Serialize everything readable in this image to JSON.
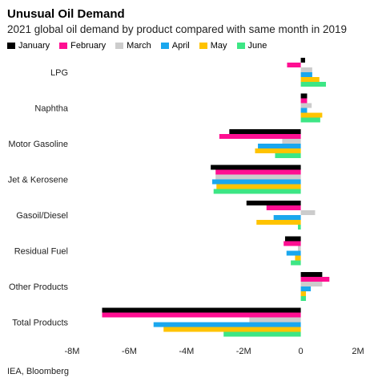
{
  "title": "Unusual Oil Demand",
  "subtitle": "2021 global oil demand by product compared with same month in 2019",
  "source": "IEA, Bloomberg",
  "chart_data": {
    "type": "bar",
    "orientation": "horizontal",
    "categories": [
      "LPG",
      "Naphtha",
      "Motor Gasoline",
      "Jet & Kerosene",
      "Gasoil/Diesel",
      "Residual Fuel",
      "Other Products",
      "Total Products"
    ],
    "series": [
      {
        "name": "January",
        "color": "#000000",
        "values": [
          0.15,
          0.22,
          -2.5,
          -3.15,
          -1.9,
          -0.55,
          0.75,
          -6.95
        ]
      },
      {
        "name": "February",
        "color": "#ff0f92",
        "values": [
          -0.48,
          0.22,
          -2.85,
          -2.98,
          -1.2,
          -0.6,
          1.0,
          -6.95
        ]
      },
      {
        "name": "March",
        "color": "#cccccc",
        "values": [
          0.4,
          0.38,
          -0.65,
          -2.98,
          0.5,
          -0.1,
          0.75,
          -1.8
        ]
      },
      {
        "name": "April",
        "color": "#1aa7ee",
        "values": [
          0.4,
          0.22,
          -1.5,
          -3.1,
          -0.95,
          -0.5,
          0.35,
          -5.15
        ]
      },
      {
        "name": "May",
        "color": "#ffc300",
        "values": [
          0.65,
          0.75,
          -1.6,
          -2.95,
          -1.55,
          -0.2,
          0.18,
          -4.8
        ]
      },
      {
        "name": "June",
        "color": "#3de685",
        "values": [
          0.88,
          0.68,
          -0.9,
          -3.05,
          -0.1,
          -0.35,
          0.18,
          -2.7
        ]
      }
    ],
    "xlim": [
      -8,
      2
    ],
    "xticks": [
      -8,
      -6,
      -4,
      -2,
      0,
      2
    ],
    "xtick_labels": [
      "-8M",
      "-6M",
      "-4M",
      "-2M",
      "0",
      "2M"
    ],
    "legend_position": "top-left",
    "grid": false
  }
}
